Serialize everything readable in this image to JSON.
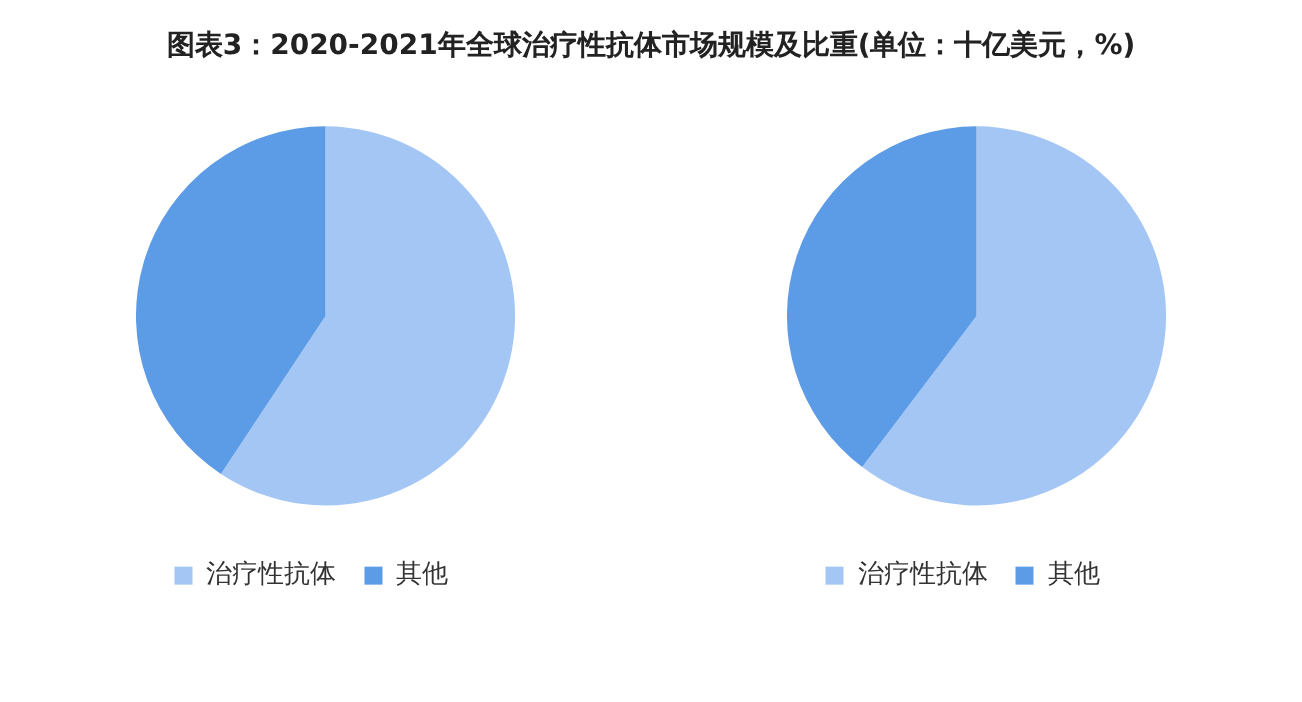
{
  "chart_data": [
    {
      "type": "pie",
      "title": "图表3：2020-2021年全球治疗性抗体市场规模及比重(单位：十亿美元，%)",
      "categories": [
        "治疗性抗体",
        "其他"
      ],
      "values": [
        59.3,
        40.7
      ],
      "colors": [
        "#a3c6f4",
        "#5c9be6"
      ],
      "legend": "bottom"
    },
    {
      "type": "pie",
      "categories": [
        "治疗性抗体",
        "其他"
      ],
      "values": [
        60.3,
        39.7
      ],
      "colors": [
        "#a3c6f4",
        "#5c9be6"
      ],
      "legend": "bottom"
    }
  ]
}
